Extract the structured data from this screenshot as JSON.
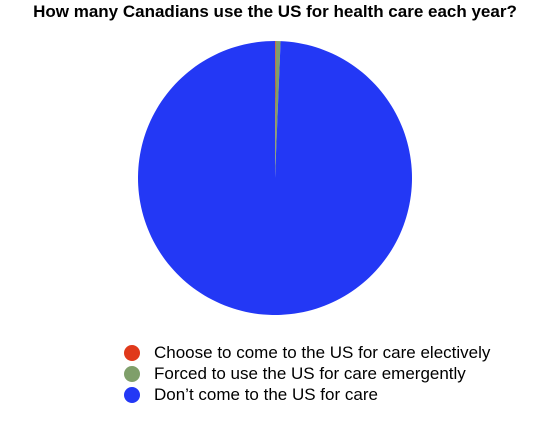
{
  "chart_data": {
    "type": "pie",
    "title": "How many Canadians use the US for health care each year?",
    "legend_position": "bottom",
    "slices": [
      {
        "label": "Choose to come to the US for care electively",
        "value": 0.09,
        "color": "#e0391b"
      },
      {
        "label": "Forced to use the US for care emergently",
        "value": 0.56,
        "color": "#7f9f6a"
      },
      {
        "label": "Don’t come to the US for care",
        "value": 99.35,
        "color": "#2338f5"
      }
    ]
  }
}
